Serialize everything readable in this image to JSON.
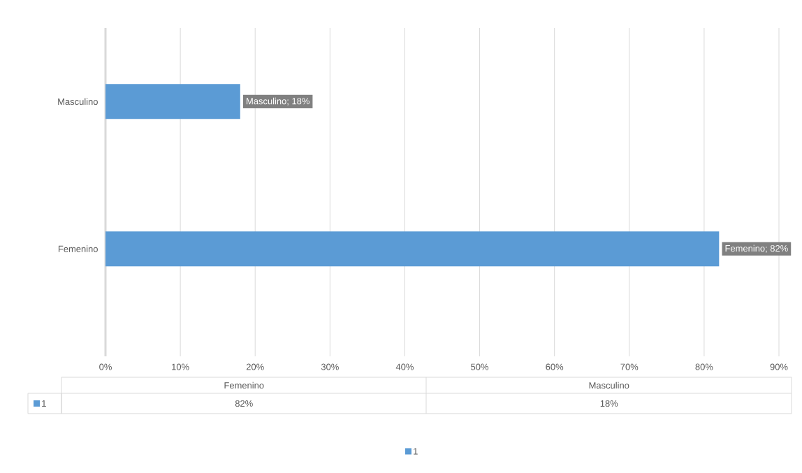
{
  "chart_data": {
    "type": "bar",
    "orientation": "horizontal",
    "categories": [
      "Masculino",
      "Femenino"
    ],
    "series": [
      {
        "name": "1",
        "color": "#5b9bd5",
        "values": [
          18,
          82
        ],
        "value_labels": [
          "Masculino; 18%",
          "Femenino; 82%"
        ]
      }
    ],
    "xlim": [
      0,
      90
    ],
    "xticks": [
      {
        "value": 0,
        "label": "0%"
      },
      {
        "value": 10,
        "label": "10%"
      },
      {
        "value": 20,
        "label": "20%"
      },
      {
        "value": 30,
        "label": "30%"
      },
      {
        "value": 40,
        "label": "40%"
      },
      {
        "value": 50,
        "label": "50%"
      },
      {
        "value": 60,
        "label": "60%"
      },
      {
        "value": 70,
        "label": "70%"
      },
      {
        "value": 80,
        "label": "80%"
      },
      {
        "value": 90,
        "label": "90%"
      }
    ],
    "grid": "x",
    "legend": "bottom",
    "annotations": [
      "82%",
      "18%"
    ]
  }
}
